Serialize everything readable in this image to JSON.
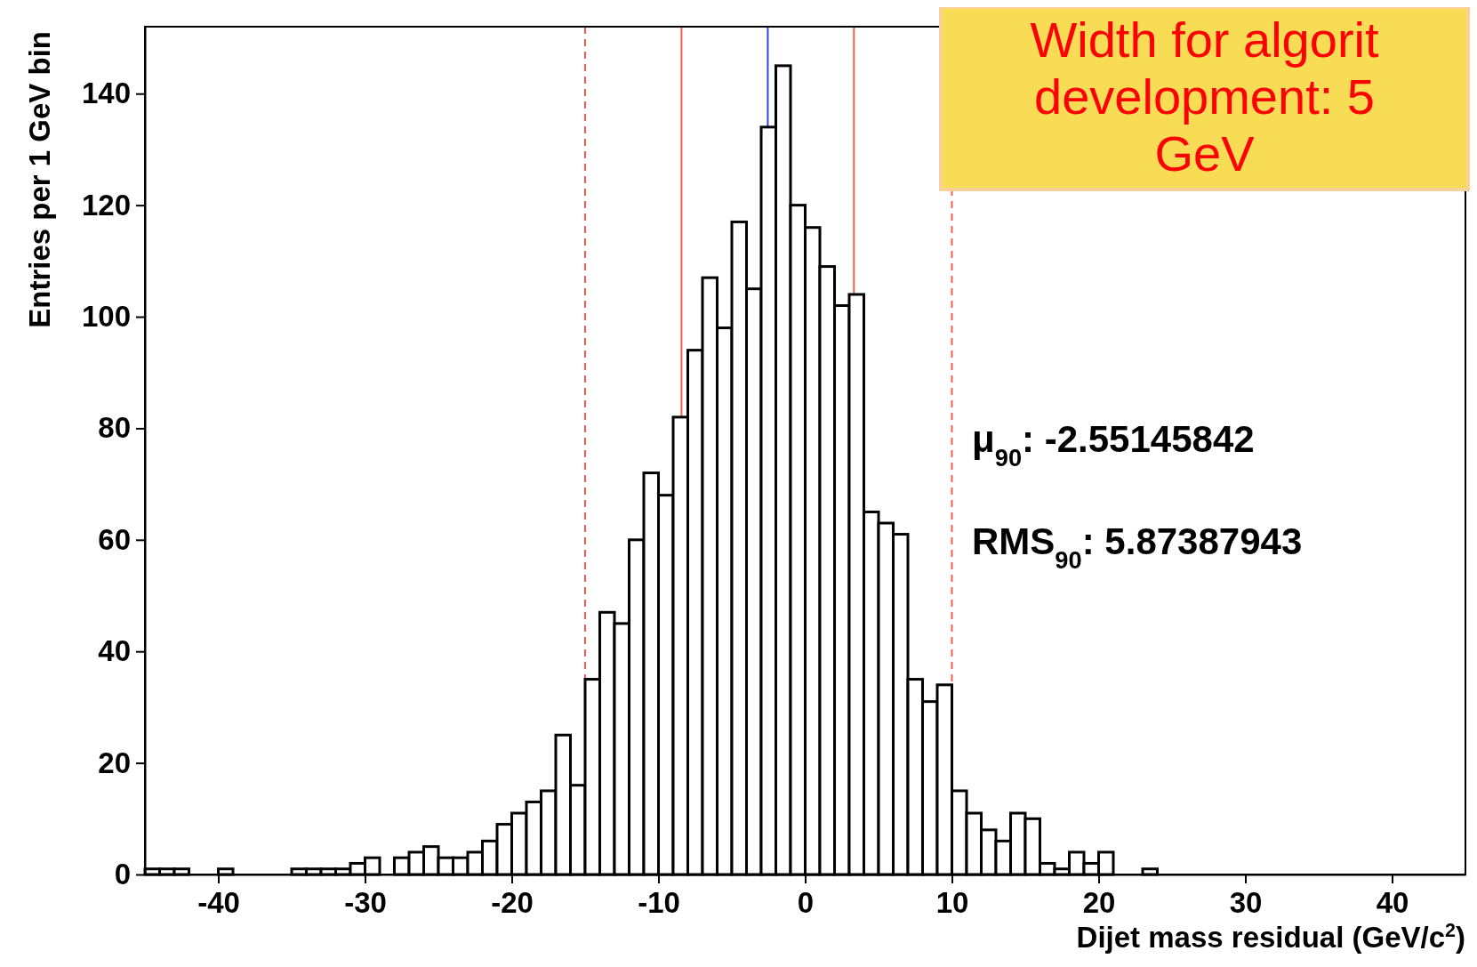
{
  "chart_data": {
    "type": "histogram",
    "xlabel": "Dijet mass residual (GeV/c$^{2}$)",
    "ylabel": "Entries per 1 GeV bin",
    "bins": [
      -45,
      -44,
      -43,
      -42,
      -41,
      -40,
      -39,
      -38,
      -37,
      -36,
      -35,
      -34,
      -33,
      -32,
      -31,
      -30,
      -29,
      -28,
      -27,
      -26,
      -25,
      -24,
      -23,
      -22,
      -21,
      -20,
      -19,
      -18,
      -17,
      -16,
      -15,
      -14,
      -13,
      -12,
      -11,
      -10,
      -9,
      -8,
      -7,
      -6,
      -5,
      -4,
      -3,
      -2,
      -1,
      0,
      1,
      2,
      3,
      4,
      5,
      6,
      7,
      8,
      9,
      10,
      11,
      12,
      13,
      14,
      15,
      16,
      17,
      18,
      19,
      20,
      21,
      22,
      23,
      24,
      25,
      26,
      27,
      28,
      29,
      30,
      31,
      32,
      33,
      34,
      35,
      36,
      37,
      38,
      39,
      40,
      41,
      42,
      43,
      44,
      45
    ],
    "values": [
      1,
      1,
      1,
      0,
      0,
      1,
      0,
      0,
      0,
      0,
      1,
      1,
      1,
      1,
      2,
      3,
      0,
      3,
      4,
      5,
      3,
      3,
      4,
      6,
      9,
      11,
      13,
      15,
      25,
      16,
      35,
      47,
      45,
      60,
      72,
      68,
      82,
      94,
      107,
      98,
      117,
      105,
      134,
      145,
      120,
      116,
      109,
      102,
      104,
      65,
      63,
      61,
      35,
      31,
      34,
      15,
      11,
      8,
      6,
      11,
      10,
      2,
      1,
      4,
      2,
      4,
      0,
      0,
      1,
      0,
      0,
      0,
      0,
      0,
      0,
      0,
      0,
      0,
      0,
      0,
      0,
      0,
      0,
      0,
      0,
      0,
      0,
      0,
      0,
      0
    ],
    "color": "#000000",
    "xlim": [
      -45,
      45
    ],
    "xticks": [
      -40,
      -30,
      -20,
      -10,
      0,
      10,
      20,
      30,
      40
    ],
    "ylim": [
      0,
      152
    ],
    "yticks": [
      0,
      20,
      40,
      60,
      80,
      100,
      120,
      140
    ],
    "grid": false,
    "ref_lines": [
      {
        "axis": "x",
        "value": -15,
        "color": "#f06050",
        "line_style": "dashed"
      },
      {
        "axis": "x",
        "value": 10,
        "color": "#f06050",
        "line_style": "dashed"
      },
      {
        "axis": "x",
        "value": -8.43,
        "color": "#f06050",
        "line_style": "solid"
      },
      {
        "axis": "x",
        "value": 3.32,
        "color": "#f06050",
        "line_style": "solid"
      },
      {
        "axis": "x",
        "value": -2.55,
        "color": "#3040f0",
        "line_style": "solid"
      }
    ],
    "annotations": [
      "μ$_{90}$: -2.55145842",
      "RMS$_{90}$: 5.87387943",
      "Width for algorit development: 5 GeV"
    ]
  }
}
